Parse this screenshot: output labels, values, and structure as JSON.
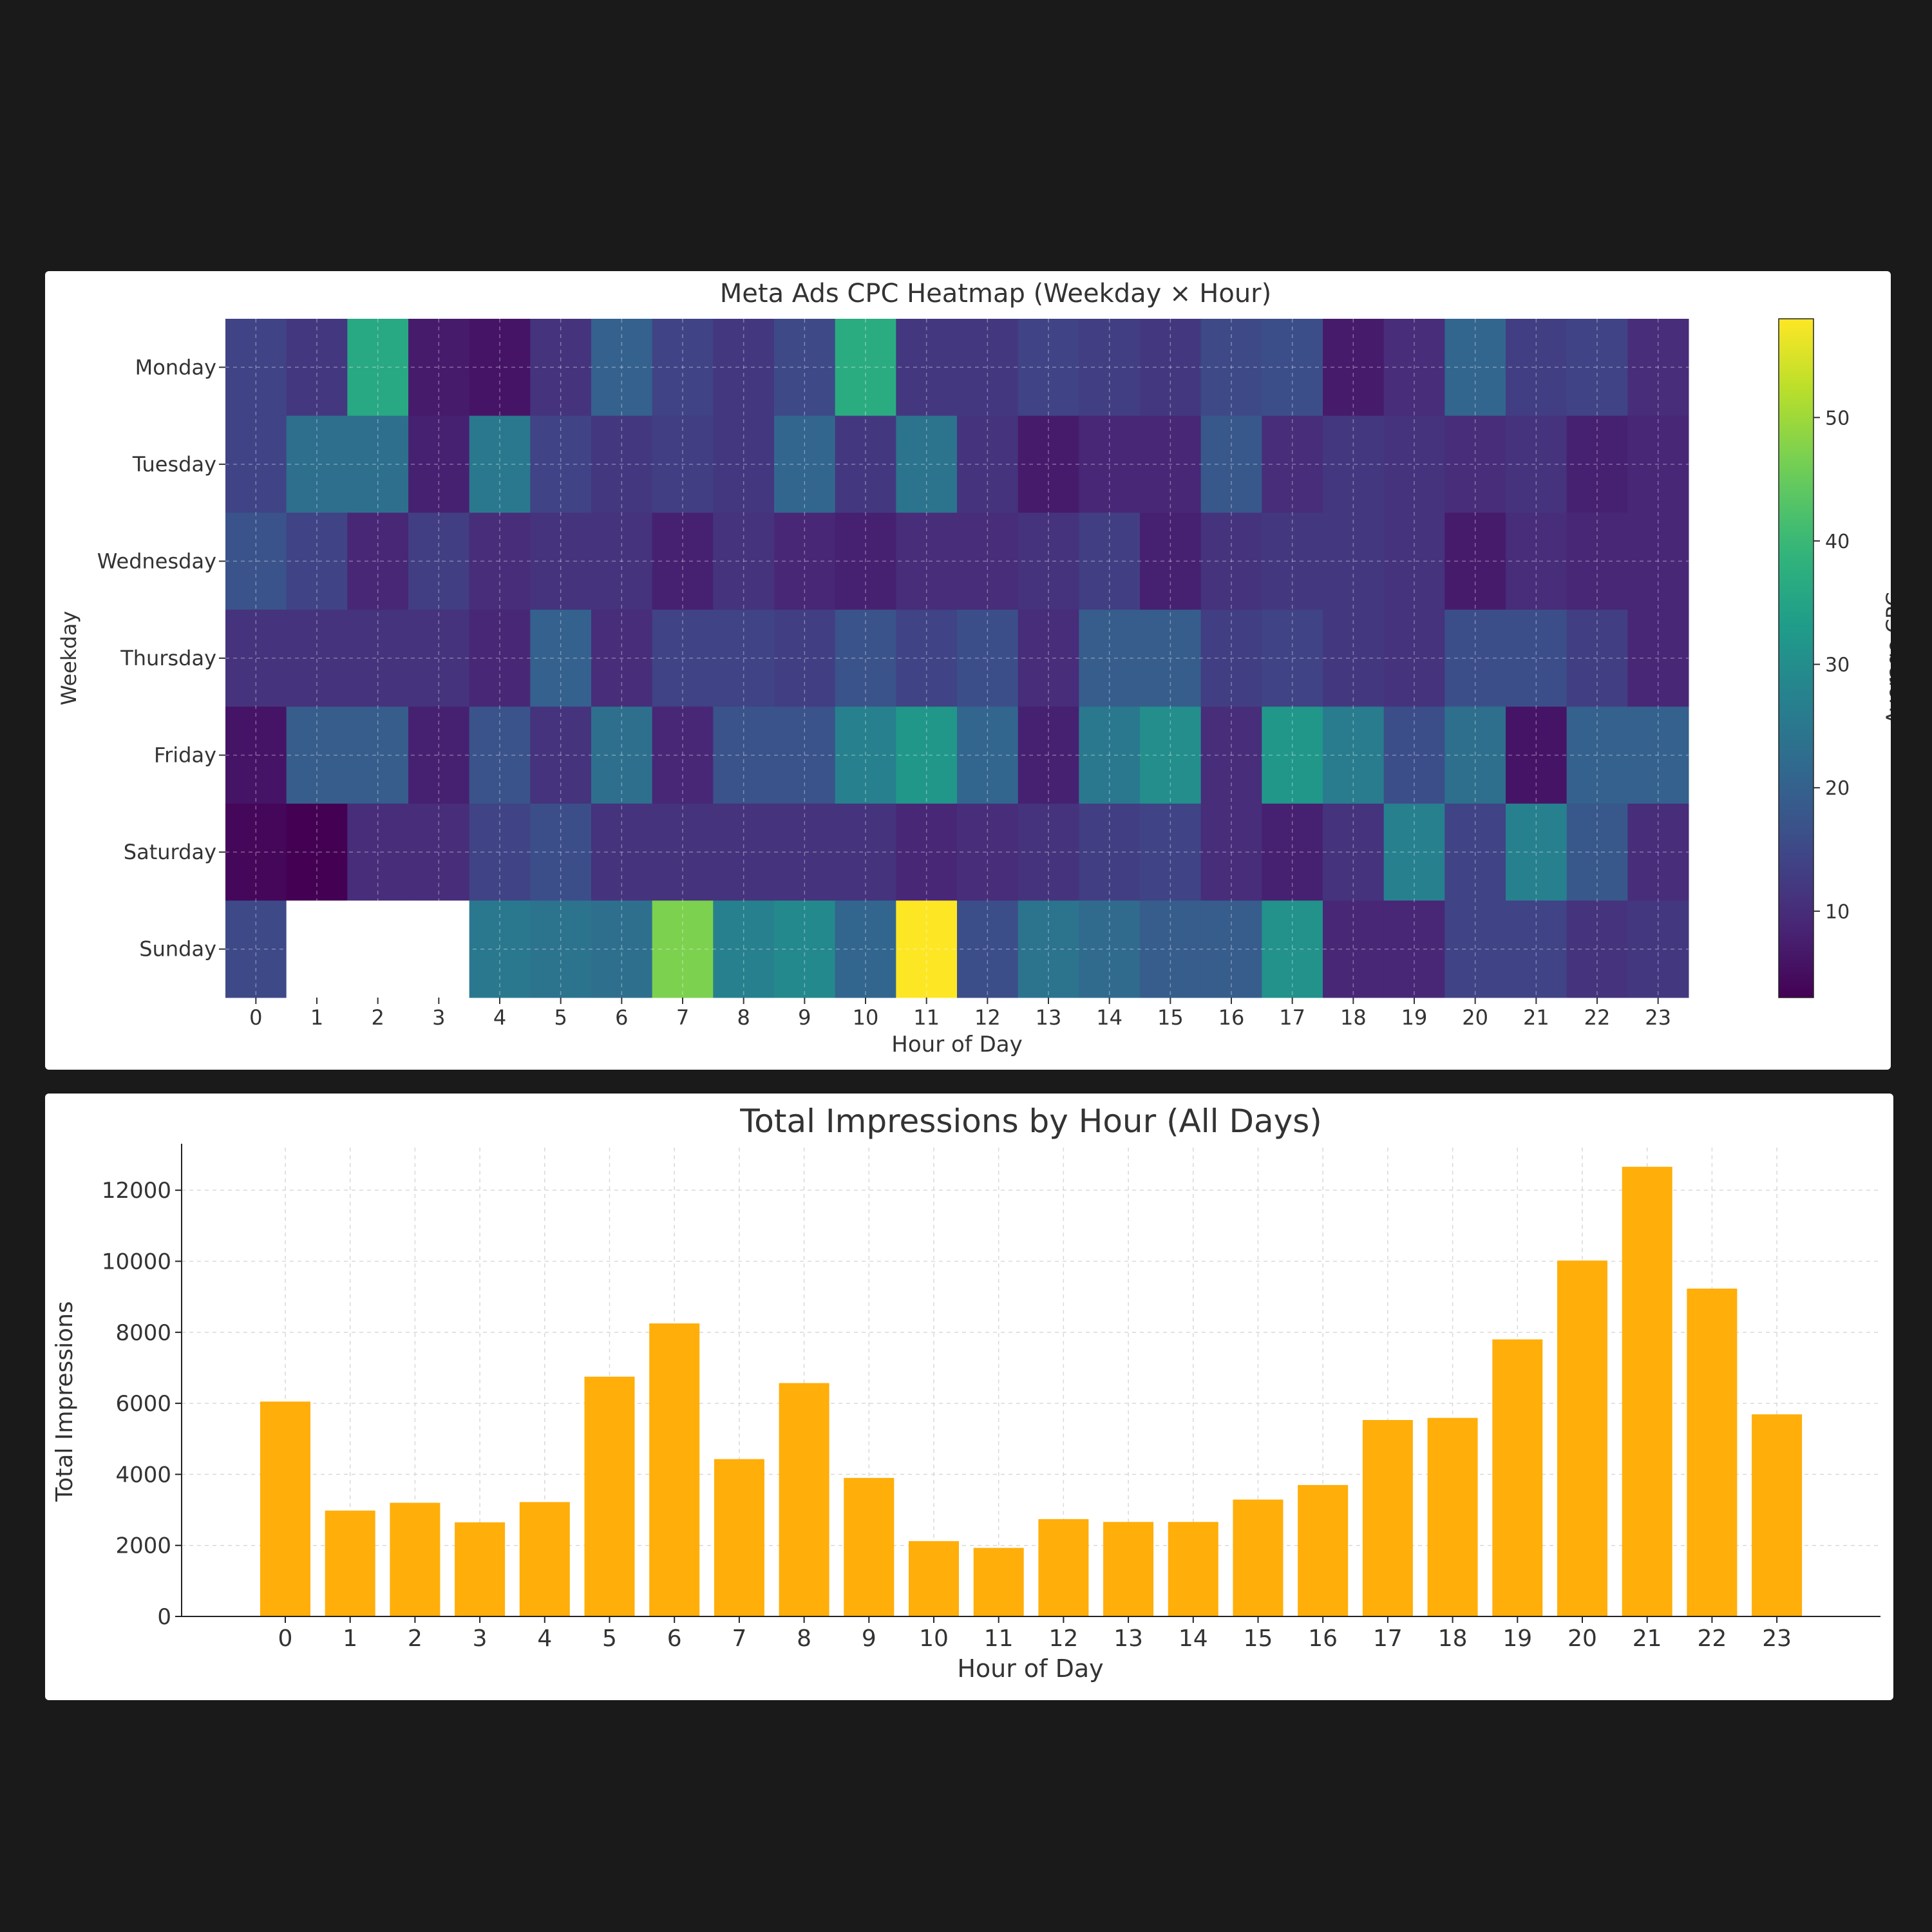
{
  "colors": {
    "background": "#1a1a1a",
    "panel": "#ffffff",
    "bar": "#ffae0a",
    "grid": "#d9d9d9",
    "text": "#333333",
    "colormap": "viridis"
  },
  "chart_data": [
    {
      "type": "heatmap",
      "title": "Meta Ads CPC Heatmap (Weekday × Hour)",
      "xlabel": "Hour of Day",
      "ylabel": "Weekday",
      "colorbar_label": "Average CPC",
      "colorbar_ticks": [
        10,
        20,
        30,
        40,
        50
      ],
      "vmin": 3,
      "vmax": 58,
      "x": [
        "0",
        "1",
        "2",
        "3",
        "4",
        "5",
        "6",
        "7",
        "8",
        "9",
        "10",
        "11",
        "12",
        "13",
        "14",
        "15",
        "16",
        "17",
        "18",
        "19",
        "20",
        "21",
        "22",
        "23"
      ],
      "y": [
        "Monday",
        "Tuesday",
        "Wednesday",
        "Thursday",
        "Friday",
        "Saturday",
        "Sunday"
      ],
      "grid": true,
      "values": [
        [
          14,
          12,
          36,
          7,
          6,
          11,
          20,
          14,
          12,
          15,
          37,
          12,
          12,
          14,
          13,
          12,
          15,
          16,
          7,
          10,
          21,
          13,
          14,
          10
        ],
        [
          14,
          23,
          23,
          8,
          25,
          14,
          12,
          13,
          12,
          21,
          12,
          24,
          11,
          7,
          9,
          9,
          18,
          10,
          12,
          11,
          10,
          11,
          8,
          9
        ],
        [
          17,
          14,
          9,
          13,
          10,
          11,
          11,
          8,
          11,
          9,
          8,
          10,
          10,
          11,
          13,
          8,
          11,
          12,
          12,
          11,
          7,
          10,
          9,
          9
        ],
        [
          11,
          11,
          11,
          11,
          9,
          20,
          10,
          14,
          14,
          13,
          17,
          14,
          16,
          10,
          19,
          19,
          13,
          14,
          12,
          11,
          16,
          16,
          13,
          9
        ],
        [
          6,
          19,
          19,
          8,
          17,
          11,
          23,
          9,
          17,
          17,
          27,
          32,
          21,
          8,
          25,
          30,
          10,
          32,
          26,
          16,
          23,
          6,
          20,
          20
        ],
        [
          4,
          3,
          10,
          10,
          14,
          16,
          11,
          11,
          11,
          11,
          11,
          9,
          10,
          11,
          13,
          14,
          10,
          8,
          11,
          27,
          14,
          27,
          18,
          10
        ],
        [
          15,
          null,
          null,
          null,
          25,
          24,
          23,
          47,
          27,
          29,
          21,
          58,
          16,
          24,
          22,
          19,
          19,
          31,
          9,
          9,
          14,
          14,
          11,
          12
        ]
      ]
    },
    {
      "type": "bar",
      "title": "Total Impressions by Hour (All Days)",
      "xlabel": "Hour of Day",
      "ylabel": "Total Impressions",
      "categories": [
        "0",
        "1",
        "2",
        "3",
        "4",
        "5",
        "6",
        "7",
        "8",
        "9",
        "10",
        "11",
        "12",
        "13",
        "14",
        "15",
        "16",
        "17",
        "18",
        "19",
        "20",
        "21",
        "22",
        "23"
      ],
      "values": [
        6050,
        2980,
        3200,
        2650,
        3220,
        6750,
        8250,
        4430,
        6570,
        3900,
        2120,
        1930,
        2740,
        2660,
        2660,
        3290,
        3700,
        5530,
        5590,
        7800,
        10020,
        12660,
        9230,
        5690
      ],
      "yticks": [
        0,
        2000,
        4000,
        6000,
        8000,
        10000,
        12000
      ],
      "ylim": [
        0,
        13200
      ],
      "grid": true
    }
  ]
}
